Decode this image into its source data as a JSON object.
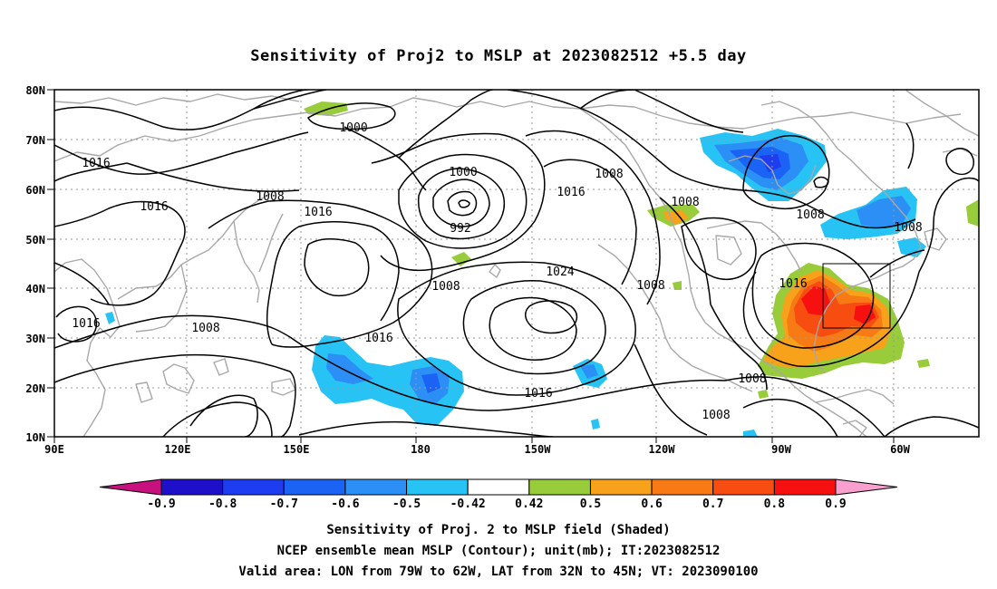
{
  "chart_data": {
    "type": "heatmap",
    "title": "Sensitivity of Proj2 to MSLP at 2023082512 +5.5 day",
    "x_ticks": [
      "90E",
      "120E",
      "150E",
      "180",
      "150W",
      "120W",
      "90W",
      "60W"
    ],
    "y_ticks": [
      "80N",
      "70N",
      "60N",
      "50N",
      "40N",
      "30N",
      "20N",
      "10N"
    ],
    "xlim": [
      "90E",
      "50W"
    ],
    "ylim": [
      "10N",
      "80N"
    ],
    "grid": true,
    "colorbar": {
      "labels": [
        "-0.9",
        "-0.8",
        "-0.7",
        "-0.6",
        "-0.5",
        "-0.42",
        "0.42",
        "0.5",
        "0.6",
        "0.7",
        "0.8",
        "0.9"
      ],
      "colors": [
        "#c8107e",
        "#1d10c8",
        "#1e3cf0",
        "#1a63f5",
        "#2b8ff5",
        "#27c3f5",
        "#ffffff",
        "#98cc3a",
        "#f7a21a",
        "#f77a14",
        "#f74d10",
        "#f61010",
        "#f9a0d0"
      ]
    },
    "contour_labels": [
      "1016",
      "1000",
      "1008",
      "1016",
      "1008",
      "1016",
      "1000",
      "992",
      "1008",
      "1016",
      "1008",
      "1008",
      "1016",
      "1024",
      "1008",
      "1016",
      "1008",
      "1016",
      "1016",
      "1008",
      "1008",
      "1008"
    ],
    "valid_area": {
      "lon": [
        "79W",
        "62W"
      ],
      "lat": [
        "32N",
        "45N"
      ]
    }
  },
  "captions": [
    "Sensitivity of Proj. 2 to MSLP field (Shaded)",
    "NCEP ensemble mean MSLP (Contour); unit(mb); IT:2023082512",
    "Valid area: LON from 79W to 62W, LAT from 32N to 45N; VT: 2023090100"
  ]
}
